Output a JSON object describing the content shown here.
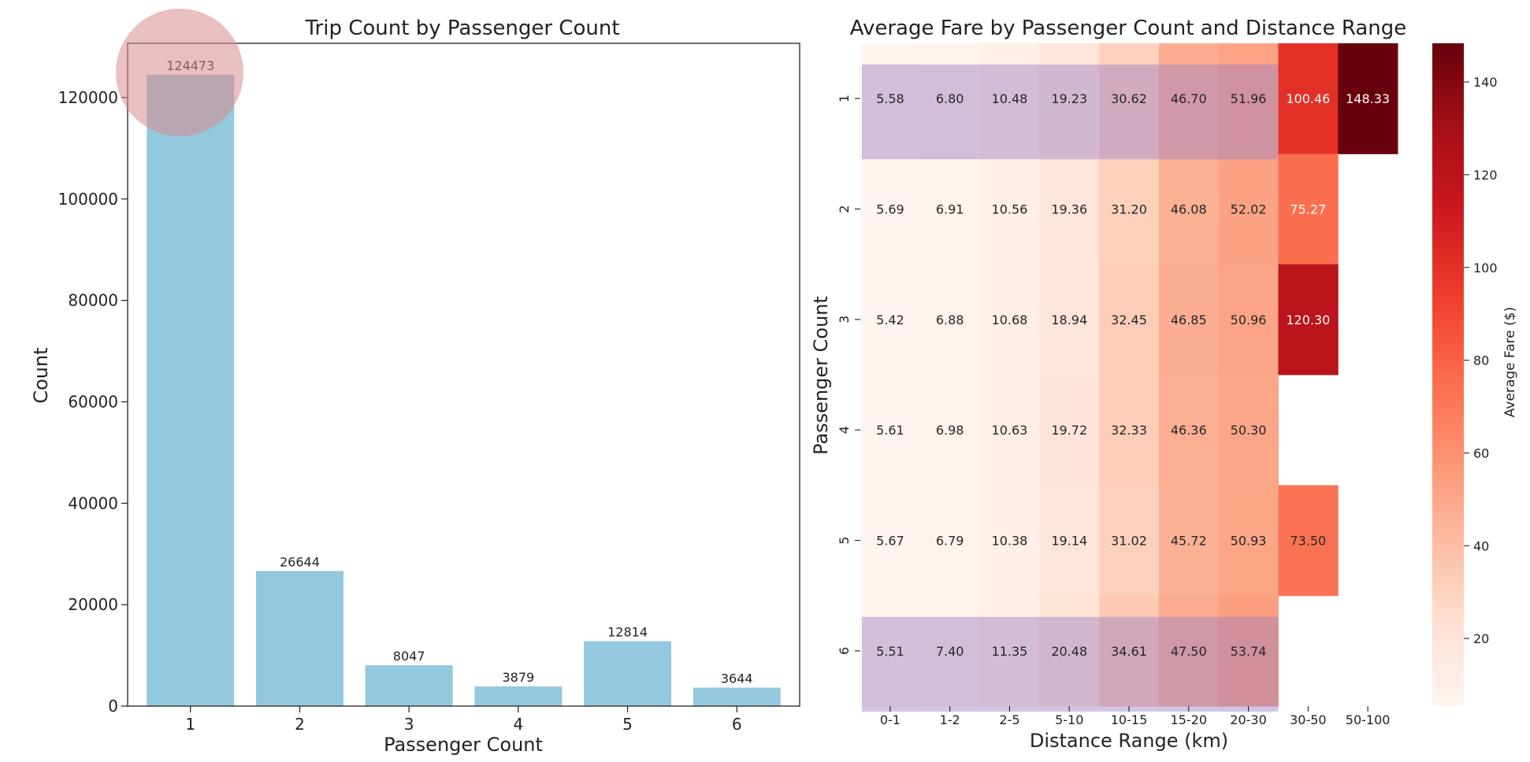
{
  "chart_data": [
    {
      "type": "bar",
      "title": "Trip Count by Passenger Count",
      "xlabel": "Passenger Count",
      "ylabel": "Count",
      "categories": [
        "1",
        "2",
        "3",
        "4",
        "5",
        "6"
      ],
      "values": [
        124473,
        26644,
        8047,
        3879,
        12814,
        3644
      ],
      "data_labels": [
        "124473",
        "26644",
        "8047",
        "3879",
        "12814",
        "3644"
      ],
      "ylim": [
        0,
        130700
      ],
      "yticks": [
        0,
        20000,
        40000,
        60000,
        80000,
        100000,
        120000
      ],
      "bar_color": "#93c8de",
      "highlight": {
        "shape": "circle",
        "category": "1",
        "color": "#d98b8b"
      },
      "grid": false
    },
    {
      "type": "heatmap",
      "title": "Average Fare by Passenger Count and Distance Range",
      "xlabel": "Distance Range (km)",
      "ylabel": "Passenger Count",
      "colorbar_label": "Average Fare ($)",
      "x": [
        "0-1",
        "1-2",
        "2-5",
        "5-10",
        "10-15",
        "15-20",
        "20-30",
        "30-50",
        "50-100"
      ],
      "y": [
        "1",
        "2",
        "3",
        "4",
        "5",
        "6"
      ],
      "values": [
        [
          5.58,
          6.8,
          10.48,
          19.23,
          30.62,
          46.7,
          51.96,
          100.46,
          148.33
        ],
        [
          5.69,
          6.91,
          10.56,
          19.36,
          31.2,
          46.08,
          52.02,
          75.27,
          null
        ],
        [
          5.42,
          6.88,
          10.68,
          18.94,
          32.45,
          46.85,
          50.96,
          120.3,
          null
        ],
        [
          5.61,
          6.98,
          10.63,
          19.72,
          32.33,
          46.36,
          50.3,
          null,
          null
        ],
        [
          5.67,
          6.79,
          10.38,
          19.14,
          31.02,
          45.72,
          50.93,
          73.5,
          null
        ],
        [
          5.51,
          7.4,
          11.35,
          20.48,
          34.61,
          47.5,
          53.74,
          null,
          null
        ]
      ],
      "colormap": "Reds",
      "colorbar_range": [
        5.42,
        148.33
      ],
      "colorbar_ticks": [
        20,
        40,
        60,
        80,
        100,
        120,
        140
      ],
      "highlight_rows": [
        "1",
        "6"
      ],
      "highlight_color": "#9c7fc4"
    }
  ]
}
